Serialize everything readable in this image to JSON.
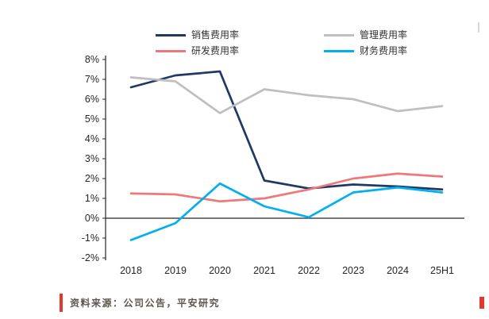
{
  "chart_data": {
    "type": "line",
    "x": [
      "2018",
      "2019",
      "2020",
      "2021",
      "2022",
      "2023",
      "2024",
      "25H1"
    ],
    "series": [
      {
        "name": "销售费用率",
        "color": "#1f3864",
        "values": [
          6.6,
          7.2,
          7.4,
          1.9,
          1.5,
          1.7,
          1.6,
          1.45
        ]
      },
      {
        "name": "管理费用率",
        "color": "#bfbfbf",
        "values": [
          7.1,
          6.9,
          5.3,
          6.5,
          6.2,
          6.0,
          5.4,
          5.65
        ]
      },
      {
        "name": "研发费用率",
        "color": "#f0787a",
        "values": [
          1.25,
          1.2,
          0.85,
          1.0,
          1.45,
          2.0,
          2.25,
          2.1
        ]
      },
      {
        "name": "财务费用率",
        "color": "#00b0f0",
        "values": [
          -1.1,
          -0.25,
          1.75,
          0.6,
          0.05,
          1.3,
          1.55,
          1.3
        ]
      }
    ],
    "title": "",
    "xlabel": "",
    "ylabel": "",
    "ylim": [
      -2,
      8
    ],
    "ytick_step": 1,
    "ytick_suffix": "%",
    "legend_position": "top",
    "grid": false,
    "axis_color": "#262626"
  },
  "footer": {
    "source_text": "资料来源：公司公告，平安研究",
    "accent_color": "#e03a2f"
  }
}
